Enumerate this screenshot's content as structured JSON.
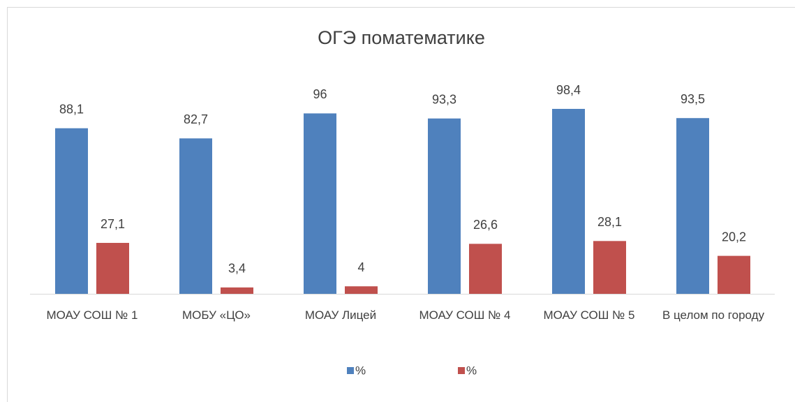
{
  "chart_data": {
    "type": "bar",
    "title": "ОГЭ поматематике",
    "categories": [
      "МОАУ СОШ № 1",
      "МОБУ «ЦО»",
      "МОАУ Лицей",
      "МОАУ СОШ № 4",
      "МОАУ СОШ № 5",
      "В целом по городу"
    ],
    "series": [
      {
        "name": "%",
        "color": "#4f81bd",
        "values": [
          88.1,
          82.7,
          96,
          93.3,
          98.4,
          93.5
        ],
        "value_labels": [
          "88,1",
          "82,7",
          "96",
          "93,3",
          "98,4",
          "93,5"
        ]
      },
      {
        "name": "%",
        "color": "#c0504d",
        "values": [
          27.1,
          3.4,
          4,
          26.6,
          28.1,
          20.2
        ],
        "value_labels": [
          "27,1",
          "3,4",
          "4",
          "26,6",
          "28,1",
          "20,2"
        ]
      }
    ],
    "legend": "bottom"
  }
}
